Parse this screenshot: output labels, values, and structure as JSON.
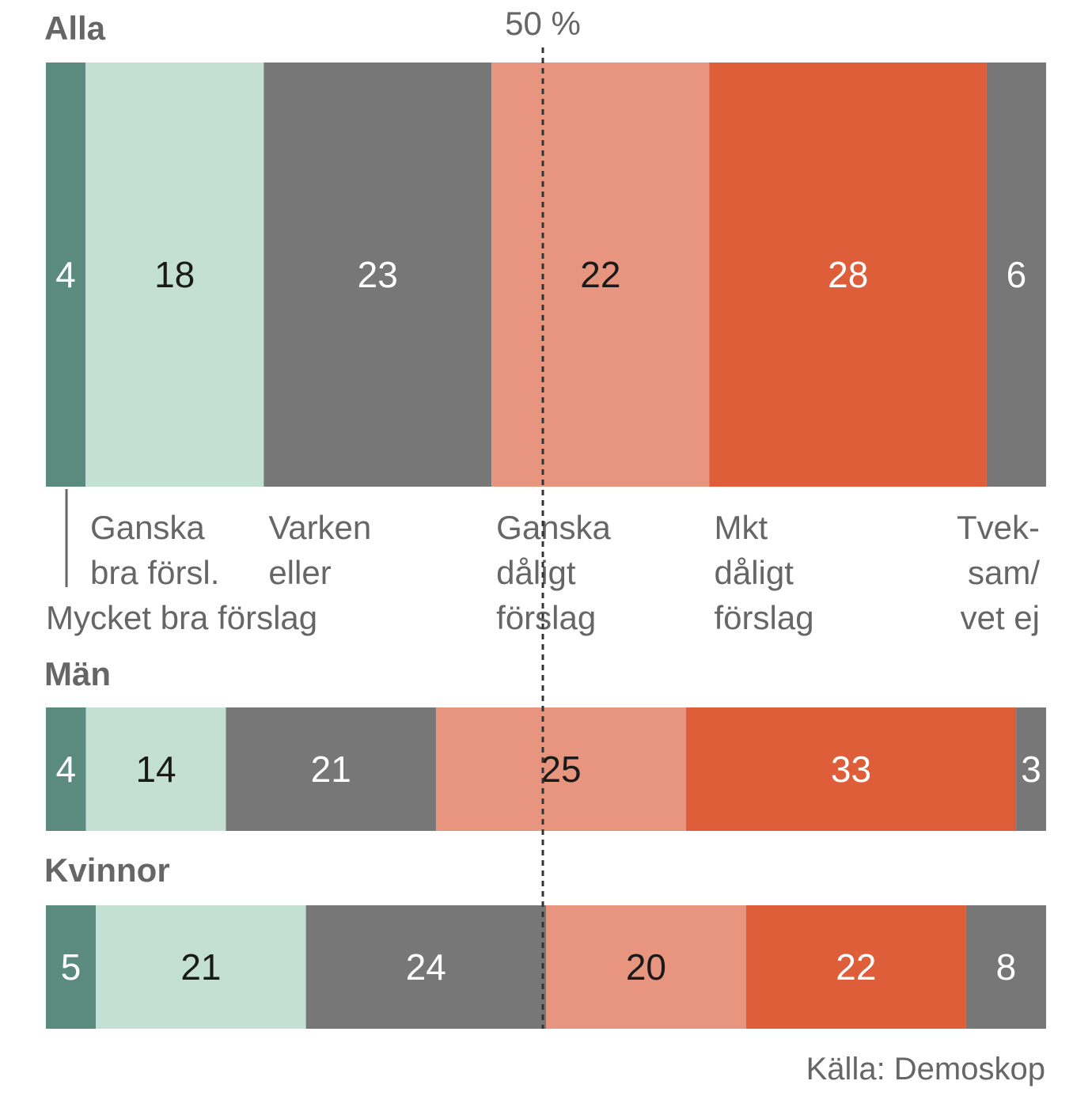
{
  "chart_data": {
    "type": "bar",
    "orientation": "horizontal",
    "stacked": true,
    "reference_label": "50 %",
    "reference_value": 50,
    "xlim": [
      0,
      100
    ],
    "categories": [
      "Mycket bra förslag",
      "Ganska bra försl.",
      "Varken eller",
      "Ganska dåligt förslag",
      "Mkt dåligt förslag",
      "Tveksam/vet ej"
    ],
    "category_labels": [
      [
        "Mycket bra förslag"
      ],
      [
        "Ganska",
        "bra försl."
      ],
      [
        "Varken",
        "eller"
      ],
      [
        "Ganska",
        "dåligt",
        "förslag"
      ],
      [
        "Mkt",
        "dåligt",
        "förslag"
      ],
      [
        "Tvek-",
        "sam/",
        "vet ej"
      ]
    ],
    "colors": [
      "#5b8b7e",
      "#c4dfd3",
      "#777777",
      "#e8957f",
      "#de5e3a",
      "#777777"
    ],
    "value_text_colors": [
      "#ffffff",
      "#1a1a1a",
      "#ffffff",
      "#1a1a1a",
      "#ffffff",
      "#ffffff"
    ],
    "groups": [
      {
        "name": "Alla",
        "values": [
          4,
          18,
          23,
          22,
          28,
          6
        ]
      },
      {
        "name": "Män",
        "values": [
          4,
          14,
          21,
          25,
          33,
          3
        ]
      },
      {
        "name": "Kvinnor",
        "values": [
          5,
          21,
          24,
          20,
          22,
          8
        ]
      }
    ],
    "source": "Källa: Demoskop"
  }
}
